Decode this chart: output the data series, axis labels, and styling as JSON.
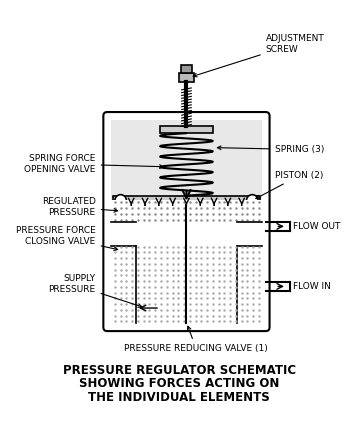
{
  "title_lines": [
    "PRESSURE REGULATOR SCHEMATIC",
    "SHOWING FORCES ACTING ON",
    "THE INDIVIDUAL ELEMENTS"
  ],
  "bg_color": "#ffffff",
  "line_color": "#000000",
  "gray_light": "#d0d0d0",
  "gray_dotted": "#c8c8c8",
  "font_size_label": 6.5,
  "font_size_title": 8.5,
  "labels": {
    "adjustment_screw": "ADJUSTMENT\nSCREW",
    "spring_force": "SPRING FORCE\nOPENING VALVE",
    "regulated_pressure": "REGULATED\nPRESSURE",
    "pressure_force": "PRESSURE FORCE\nCLOSING VALVE",
    "supply_pressure": "SUPPLY\nPRESSURE",
    "spring": "SPRING (3)",
    "piston": "PISTON (2)",
    "flow_out": "FLOW OUT",
    "flow_in": "FLOW IN",
    "prv": "PRESSURE REDUCING VALVE (1)"
  }
}
